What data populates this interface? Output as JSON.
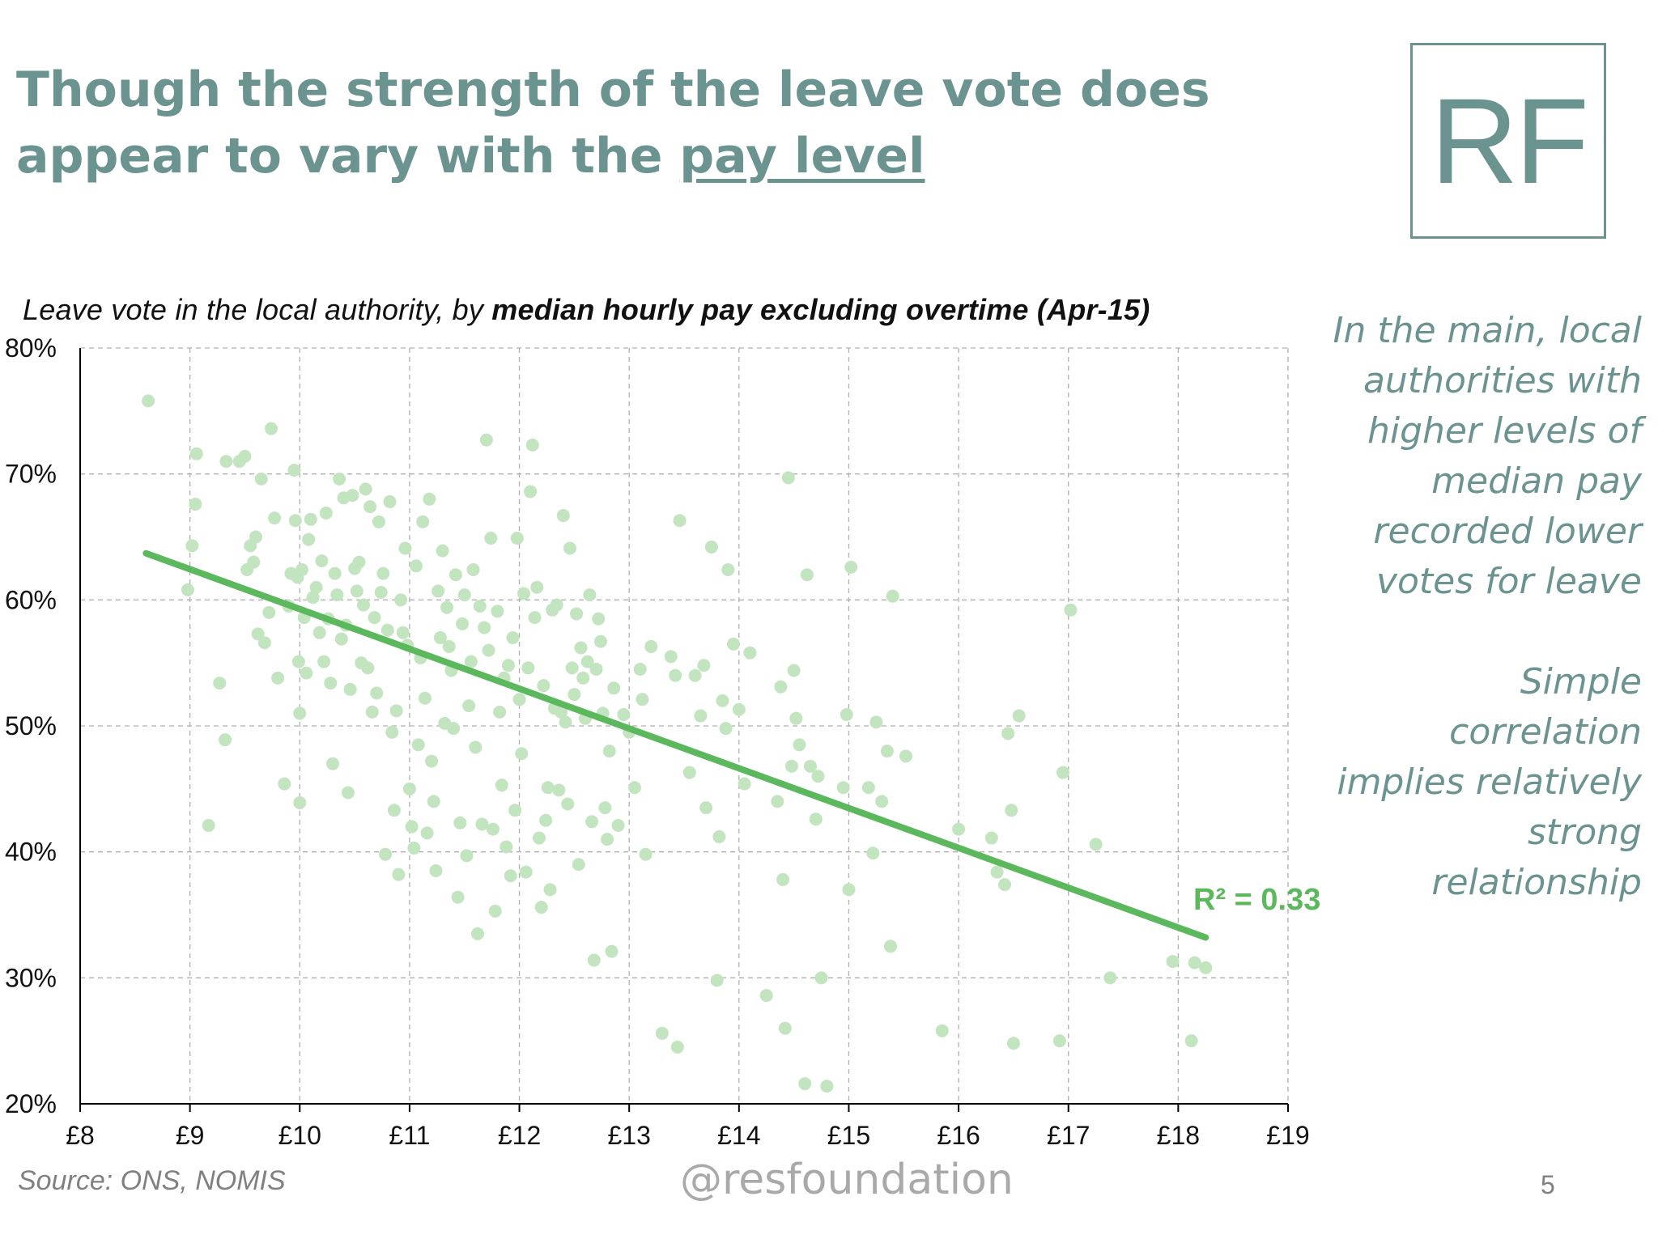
{
  "slide": {
    "title_part1": "Though the strength of the leave vote does appear to vary with the ",
    "title_underlined": "pay level",
    "logo_text": "RF",
    "subtitle_prefix": "Leave vote in the local authority, by ",
    "subtitle_bold": "median hourly pay excluding overtime (Apr-15)",
    "notes": [
      "In the main, local",
      "authorities  with",
      "higher levels of",
      "median pay",
      "recorded lower",
      "votes for leave",
      "",
      "Simple",
      "correlation",
      "implies relatively",
      "strong",
      "relationship"
    ],
    "source": "Source: ONS, NOMIS",
    "handle": "@resfoundation",
    "page_number": "5"
  },
  "colors": {
    "title": "#6b9390",
    "points": "#c2e5c0",
    "trendline": "#5cb85c",
    "grid": "#b0b0b0"
  },
  "chart_data": {
    "type": "scatter",
    "title": "Leave vote in the local authority, by median hourly pay excluding overtime (Apr-15)",
    "xlim": [
      8,
      19
    ],
    "ylim": [
      20,
      80
    ],
    "x_ticks": [
      8,
      9,
      10,
      11,
      12,
      13,
      14,
      15,
      16,
      17,
      18,
      19
    ],
    "x_tick_labels": [
      "£8",
      "£9",
      "£10",
      "£11",
      "£12",
      "£13",
      "£14",
      "£15",
      "£16",
      "£17",
      "£18",
      "£19"
    ],
    "y_ticks": [
      20,
      30,
      40,
      50,
      60,
      70,
      80
    ],
    "y_tick_labels": [
      "20%",
      "30%",
      "40%",
      "50%",
      "60%",
      "70%",
      "80%"
    ],
    "grid": true,
    "trendline": {
      "x": [
        8.6,
        18.25
      ],
      "y": [
        63.7,
        33.2
      ]
    },
    "annotation": "R² = 0.33",
    "points": [
      [
        8.62,
        75.8
      ],
      [
        8.98,
        60.8
      ],
      [
        9.02,
        64.3
      ],
      [
        9.05,
        67.6
      ],
      [
        9.06,
        71.6
      ],
      [
        9.17,
        42.1
      ],
      [
        9.27,
        53.4
      ],
      [
        9.32,
        48.9
      ],
      [
        9.33,
        71.0
      ],
      [
        9.45,
        71.0
      ],
      [
        9.5,
        71.4
      ],
      [
        9.52,
        62.4
      ],
      [
        9.55,
        64.3
      ],
      [
        9.58,
        63.0
      ],
      [
        9.6,
        65.0
      ],
      [
        9.62,
        57.3
      ],
      [
        9.65,
        69.6
      ],
      [
        9.68,
        56.6
      ],
      [
        9.72,
        59.0
      ],
      [
        9.74,
        73.6
      ],
      [
        9.77,
        66.5
      ],
      [
        9.8,
        53.8
      ],
      [
        9.86,
        45.4
      ],
      [
        9.9,
        59.5
      ],
      [
        9.92,
        62.1
      ],
      [
        9.95,
        70.3
      ],
      [
        9.96,
        66.3
      ],
      [
        9.98,
        61.8
      ],
      [
        9.99,
        55.1
      ],
      [
        10.0,
        51.0
      ],
      [
        10.0,
        43.9
      ],
      [
        10.02,
        62.4
      ],
      [
        10.04,
        58.6
      ],
      [
        10.06,
        54.2
      ],
      [
        10.08,
        64.8
      ],
      [
        10.1,
        66.4
      ],
      [
        10.12,
        60.2
      ],
      [
        10.15,
        61.0
      ],
      [
        10.18,
        57.4
      ],
      [
        10.2,
        63.1
      ],
      [
        10.22,
        55.1
      ],
      [
        10.24,
        66.9
      ],
      [
        10.26,
        58.5
      ],
      [
        10.28,
        53.4
      ],
      [
        10.3,
        47.0
      ],
      [
        10.32,
        62.1
      ],
      [
        10.34,
        60.4
      ],
      [
        10.36,
        69.6
      ],
      [
        10.38,
        56.9
      ],
      [
        10.4,
        68.1
      ],
      [
        10.42,
        58.0
      ],
      [
        10.44,
        44.7
      ],
      [
        10.46,
        52.9
      ],
      [
        10.48,
        68.3
      ],
      [
        10.5,
        62.5
      ],
      [
        10.52,
        60.7
      ],
      [
        10.54,
        63.0
      ],
      [
        10.56,
        55.0
      ],
      [
        10.58,
        59.6
      ],
      [
        10.6,
        68.8
      ],
      [
        10.62,
        54.6
      ],
      [
        10.64,
        67.4
      ],
      [
        10.66,
        51.1
      ],
      [
        10.68,
        58.6
      ],
      [
        10.7,
        52.6
      ],
      [
        10.72,
        66.2
      ],
      [
        10.74,
        60.6
      ],
      [
        10.76,
        62.1
      ],
      [
        10.78,
        39.8
      ],
      [
        10.8,
        57.6
      ],
      [
        10.82,
        67.8
      ],
      [
        10.84,
        49.5
      ],
      [
        10.86,
        43.3
      ],
      [
        10.88,
        51.2
      ],
      [
        10.9,
        38.2
      ],
      [
        10.92,
        60.0
      ],
      [
        10.94,
        57.4
      ],
      [
        10.96,
        64.1
      ],
      [
        10.98,
        56.4
      ],
      [
        11.0,
        45.0
      ],
      [
        11.02,
        42.0
      ],
      [
        11.04,
        40.3
      ],
      [
        11.06,
        62.7
      ],
      [
        11.08,
        48.5
      ],
      [
        11.1,
        55.4
      ],
      [
        11.12,
        66.2
      ],
      [
        11.14,
        52.2
      ],
      [
        11.16,
        41.5
      ],
      [
        11.18,
        68.0
      ],
      [
        11.2,
        47.2
      ],
      [
        11.22,
        44.0
      ],
      [
        11.24,
        38.5
      ],
      [
        11.26,
        60.7
      ],
      [
        11.28,
        57.0
      ],
      [
        11.3,
        63.9
      ],
      [
        11.32,
        50.2
      ],
      [
        11.34,
        59.4
      ],
      [
        11.36,
        56.3
      ],
      [
        11.38,
        54.4
      ],
      [
        11.4,
        49.8
      ],
      [
        11.42,
        62.0
      ],
      [
        11.44,
        36.4
      ],
      [
        11.46,
        42.3
      ],
      [
        11.48,
        58.1
      ],
      [
        11.5,
        60.4
      ],
      [
        11.52,
        39.7
      ],
      [
        11.54,
        51.6
      ],
      [
        11.56,
        55.1
      ],
      [
        11.58,
        62.4
      ],
      [
        11.6,
        48.3
      ],
      [
        11.62,
        33.5
      ],
      [
        11.64,
        59.5
      ],
      [
        11.66,
        42.2
      ],
      [
        11.68,
        57.8
      ],
      [
        11.7,
        72.7
      ],
      [
        11.72,
        56.0
      ],
      [
        11.74,
        64.9
      ],
      [
        11.76,
        41.8
      ],
      [
        11.78,
        35.3
      ],
      [
        11.8,
        59.1
      ],
      [
        11.82,
        51.1
      ],
      [
        11.84,
        45.3
      ],
      [
        11.86,
        53.8
      ],
      [
        11.88,
        40.4
      ],
      [
        11.9,
        54.8
      ],
      [
        11.92,
        38.1
      ],
      [
        11.94,
        57.0
      ],
      [
        11.96,
        43.3
      ],
      [
        11.98,
        64.9
      ],
      [
        12.0,
        52.1
      ],
      [
        12.02,
        47.8
      ],
      [
        12.04,
        60.5
      ],
      [
        12.06,
        38.4
      ],
      [
        12.08,
        54.6
      ],
      [
        12.1,
        68.6
      ],
      [
        12.12,
        72.3
      ],
      [
        12.14,
        58.6
      ],
      [
        12.16,
        61.0
      ],
      [
        12.18,
        41.1
      ],
      [
        12.2,
        35.6
      ],
      [
        12.22,
        53.2
      ],
      [
        12.24,
        42.5
      ],
      [
        12.26,
        45.1
      ],
      [
        12.28,
        37.0
      ],
      [
        12.3,
        59.2
      ],
      [
        12.32,
        51.4
      ],
      [
        12.34,
        59.6
      ],
      [
        12.36,
        44.9
      ],
      [
        12.38,
        51.1
      ],
      [
        12.4,
        66.7
      ],
      [
        12.42,
        50.3
      ],
      [
        12.44,
        43.8
      ],
      [
        12.46,
        64.1
      ],
      [
        12.48,
        54.6
      ],
      [
        12.5,
        52.5
      ],
      [
        12.52,
        58.9
      ],
      [
        12.54,
        39.0
      ],
      [
        12.56,
        56.2
      ],
      [
        12.58,
        53.8
      ],
      [
        12.6,
        50.6
      ],
      [
        12.62,
        55.1
      ],
      [
        12.64,
        60.4
      ],
      [
        12.66,
        42.4
      ],
      [
        12.68,
        31.4
      ],
      [
        12.7,
        54.5
      ],
      [
        12.72,
        58.5
      ],
      [
        12.74,
        56.7
      ],
      [
        12.76,
        51.0
      ],
      [
        12.78,
        43.5
      ],
      [
        12.8,
        41.0
      ],
      [
        12.82,
        48.0
      ],
      [
        12.84,
        32.1
      ],
      [
        12.86,
        53.0
      ],
      [
        12.9,
        42.1
      ],
      [
        12.95,
        50.9
      ],
      [
        13.0,
        49.5
      ],
      [
        13.05,
        45.1
      ],
      [
        13.1,
        54.5
      ],
      [
        13.12,
        52.1
      ],
      [
        13.15,
        39.8
      ],
      [
        13.2,
        56.3
      ],
      [
        13.3,
        25.6
      ],
      [
        13.38,
        55.5
      ],
      [
        13.42,
        54.0
      ],
      [
        13.44,
        24.5
      ],
      [
        13.46,
        66.3
      ],
      [
        13.55,
        46.3
      ],
      [
        13.6,
        54.0
      ],
      [
        13.65,
        50.8
      ],
      [
        13.68,
        54.8
      ],
      [
        13.7,
        43.5
      ],
      [
        13.75,
        64.2
      ],
      [
        13.8,
        29.8
      ],
      [
        13.82,
        41.2
      ],
      [
        13.85,
        52.0
      ],
      [
        13.88,
        49.8
      ],
      [
        13.9,
        62.4
      ],
      [
        13.95,
        56.5
      ],
      [
        14.0,
        51.3
      ],
      [
        14.05,
        45.4
      ],
      [
        14.1,
        55.8
      ],
      [
        14.25,
        28.6
      ],
      [
        14.35,
        44.0
      ],
      [
        14.38,
        53.1
      ],
      [
        14.4,
        37.8
      ],
      [
        14.42,
        26.0
      ],
      [
        14.45,
        69.7
      ],
      [
        14.48,
        46.8
      ],
      [
        14.5,
        54.4
      ],
      [
        14.52,
        50.6
      ],
      [
        14.55,
        48.5
      ],
      [
        14.6,
        21.6
      ],
      [
        14.62,
        62.0
      ],
      [
        14.65,
        46.8
      ],
      [
        14.7,
        42.6
      ],
      [
        14.72,
        46.0
      ],
      [
        14.75,
        30.0
      ],
      [
        14.8,
        21.4
      ],
      [
        14.95,
        45.1
      ],
      [
        14.98,
        50.9
      ],
      [
        15.0,
        37.0
      ],
      [
        15.02,
        62.6
      ],
      [
        15.18,
        45.1
      ],
      [
        15.22,
        39.9
      ],
      [
        15.25,
        50.3
      ],
      [
        15.3,
        44.0
      ],
      [
        15.35,
        48.0
      ],
      [
        15.38,
        32.5
      ],
      [
        15.4,
        60.3
      ],
      [
        15.52,
        47.6
      ],
      [
        15.85,
        25.8
      ],
      [
        16.0,
        41.8
      ],
      [
        16.3,
        41.1
      ],
      [
        16.35,
        38.4
      ],
      [
        16.42,
        37.4
      ],
      [
        16.45,
        49.4
      ],
      [
        16.48,
        43.3
      ],
      [
        16.5,
        24.8
      ],
      [
        16.55,
        50.8
      ],
      [
        16.92,
        25.0
      ],
      [
        16.95,
        46.3
      ],
      [
        17.02,
        59.2
      ],
      [
        17.25,
        40.6
      ],
      [
        17.38,
        30.0
      ],
      [
        17.95,
        31.3
      ],
      [
        18.12,
        25.0
      ],
      [
        18.15,
        31.2
      ],
      [
        18.25,
        30.8
      ]
    ]
  }
}
